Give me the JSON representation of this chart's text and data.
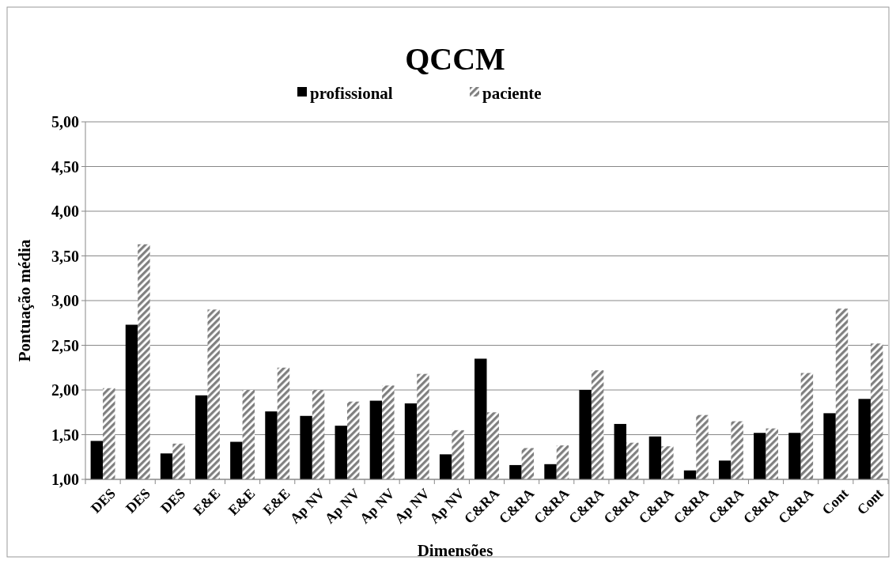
{
  "chart_data": {
    "type": "bar",
    "title": "QCCM",
    "xlabel": "Dimensões",
    "ylabel": "Pontuação média",
    "categories": [
      "DES",
      "DES",
      "DES",
      "E&E",
      "E&E",
      "E&E",
      "Ap NV",
      "Ap NV",
      "Ap NV",
      "Ap NV",
      "Ap NV",
      "C&RA",
      "C&RA",
      "C&RA",
      "C&RA",
      "C&RA",
      "C&RA",
      "C&RA",
      "C&RA",
      "C&RA",
      "C&RA",
      "Cont",
      "Cont"
    ],
    "series": [
      {
        "name": "profissional",
        "color": "#000000",
        "values": [
          1.43,
          2.73,
          1.29,
          1.94,
          1.42,
          1.76,
          1.71,
          1.6,
          1.88,
          1.85,
          1.28,
          2.35,
          1.16,
          1.17,
          2.0,
          1.62,
          1.48,
          1.1,
          1.21,
          1.52,
          1.52,
          1.74,
          1.9
        ]
      },
      {
        "name": "paciente",
        "color": "#808080",
        "values": [
          2.02,
          3.63,
          1.4,
          2.9,
          2.0,
          2.25,
          2.0,
          1.87,
          2.05,
          2.18,
          1.55,
          1.75,
          1.35,
          1.38,
          2.22,
          1.41,
          1.37,
          1.72,
          1.65,
          1.57,
          2.19,
          2.91,
          2.52
        ]
      }
    ],
    "ylim": [
      1,
      5
    ],
    "yticks": [
      {
        "value": 1,
        "label": "1,00"
      },
      {
        "value": 1.5,
        "label": "1,50"
      },
      {
        "value": 2,
        "label": "2,00"
      },
      {
        "value": 2.5,
        "label": "2,50"
      },
      {
        "value": 3,
        "label": "3,00"
      },
      {
        "value": 3.5,
        "label": "3,50"
      },
      {
        "value": 4,
        "label": "4,00"
      },
      {
        "value": 4.5,
        "label": "4,50"
      },
      {
        "value": 5,
        "label": "5,00"
      }
    ],
    "grid": "y",
    "legend": "top"
  }
}
